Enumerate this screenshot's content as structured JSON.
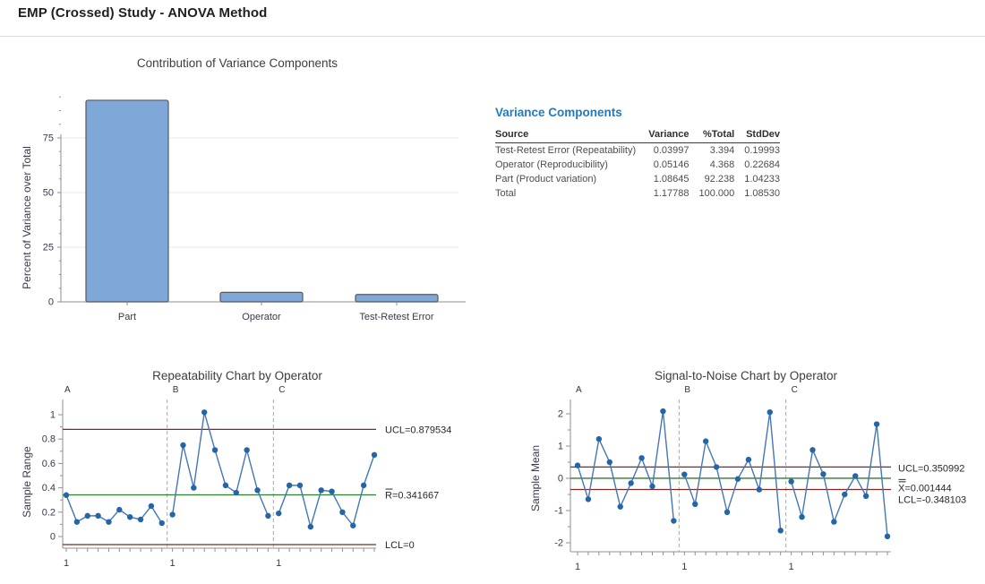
{
  "page_title": "EMP (Crossed) Study - ANOVA Method",
  "colors": {
    "heading_blue": "#1f7bc1",
    "bar_fill": "#7fa8d9",
    "bar_stroke": "#55595e",
    "line_blue": "#4377b5",
    "marker_blue": "#2465a8",
    "maroon": "#7b2a23",
    "green": "#2e7d2e",
    "axis": "#8f8f8f",
    "grid": "#e9e9e9",
    "dashed": "#a8a8a8"
  },
  "variance_table": {
    "heading": "Variance Components",
    "columns": [
      "Source",
      "Variance",
      "%Total",
      "StdDev"
    ],
    "rows": [
      [
        "Test-Retest Error (Repeatability)",
        "0.03997",
        "3.394",
        "0.19993"
      ],
      [
        "Operator (Reproducibility)",
        "0.05146",
        "4.368",
        "0.22684"
      ],
      [
        "Part (Product variation)",
        "1.08645",
        "92.238",
        "1.04233"
      ],
      [
        "Total",
        "1.17788",
        "100.000",
        "1.08530"
      ]
    ]
  },
  "chart_data": [
    {
      "id": "contribution",
      "type": "bar",
      "title": "Contribution of Variance Components",
      "ylabel": "Percent of Variance over Total",
      "categories": [
        "Part",
        "Operator",
        "Test-Retest Error"
      ],
      "values": [
        92.238,
        4.368,
        3.394
      ],
      "yticks": [
        0,
        25,
        50,
        75
      ],
      "ylim": [
        0,
        95
      ],
      "grid": true,
      "legend": "none"
    },
    {
      "id": "repeatability",
      "type": "line",
      "title": "Repeatability Chart by Operator",
      "ylabel": "Sample Range",
      "yticks": [
        0,
        0.2,
        0.4,
        0.6,
        0.8,
        1
      ],
      "minor_step": 0.1,
      "ylim": [
        -0.12,
        1.12
      ],
      "x_group_label": "1",
      "groups": [
        "A",
        "B",
        "C"
      ],
      "series": [
        {
          "name": "A",
          "values": [
            0.34,
            0.12,
            0.17,
            0.17,
            0.12,
            0.22,
            0.16,
            0.14,
            0.25,
            0.11
          ]
        },
        {
          "name": "B",
          "values": [
            0.18,
            0.75,
            0.4,
            1.02,
            0.71,
            0.42,
            0.36,
            0.71,
            0.38,
            0.17
          ]
        },
        {
          "name": "C",
          "values": [
            0.19,
            0.42,
            0.42,
            0.08,
            0.38,
            0.37,
            0.2,
            0.09,
            0.42,
            0.67
          ]
        }
      ],
      "control_lines": [
        {
          "label": "UCL=0.879534",
          "value": 0.879534,
          "color": "maroon",
          "overbar": 0
        },
        {
          "label": "R=0.341667",
          "value": 0.341667,
          "color": "green",
          "overbar": 1
        },
        {
          "label": "LCL=0",
          "value": 0,
          "color": "maroon",
          "overbar": 0
        }
      ]
    },
    {
      "id": "signal_to_noise",
      "type": "line",
      "title": "Signal-to-Noise Chart by Operator",
      "ylabel": "Sample Mean",
      "yticks": [
        2,
        1,
        0,
        -1,
        -2
      ],
      "minor_step": 0.5,
      "ylim": [
        -2.3,
        2.3
      ],
      "x_group_label": "1",
      "groups": [
        "A",
        "B",
        "C"
      ],
      "series": [
        {
          "name": "A",
          "values": [
            0.4,
            -0.65,
            1.22,
            0.5,
            -0.88,
            -0.15,
            0.63,
            -0.25,
            2.08,
            -1.32
          ]
        },
        {
          "name": "B",
          "values": [
            0.12,
            -0.8,
            1.15,
            0.35,
            -1.05,
            -0.02,
            0.58,
            -0.35,
            2.05,
            -1.62
          ]
        },
        {
          "name": "C",
          "values": [
            -0.1,
            -1.2,
            0.88,
            0.13,
            -1.35,
            -0.5,
            0.07,
            -0.55,
            1.68,
            -1.8
          ]
        }
      ],
      "control_lines": [
        {
          "label": "UCL=0.350992",
          "value": 0.350992,
          "color": "maroon",
          "overbar": 0
        },
        {
          "label": "X=0.001444",
          "value": 0.001444,
          "color": "green",
          "overbar": 2
        },
        {
          "label": "LCL=-0.348103",
          "value": -0.348103,
          "color": "maroon",
          "overbar": 0
        }
      ]
    }
  ]
}
